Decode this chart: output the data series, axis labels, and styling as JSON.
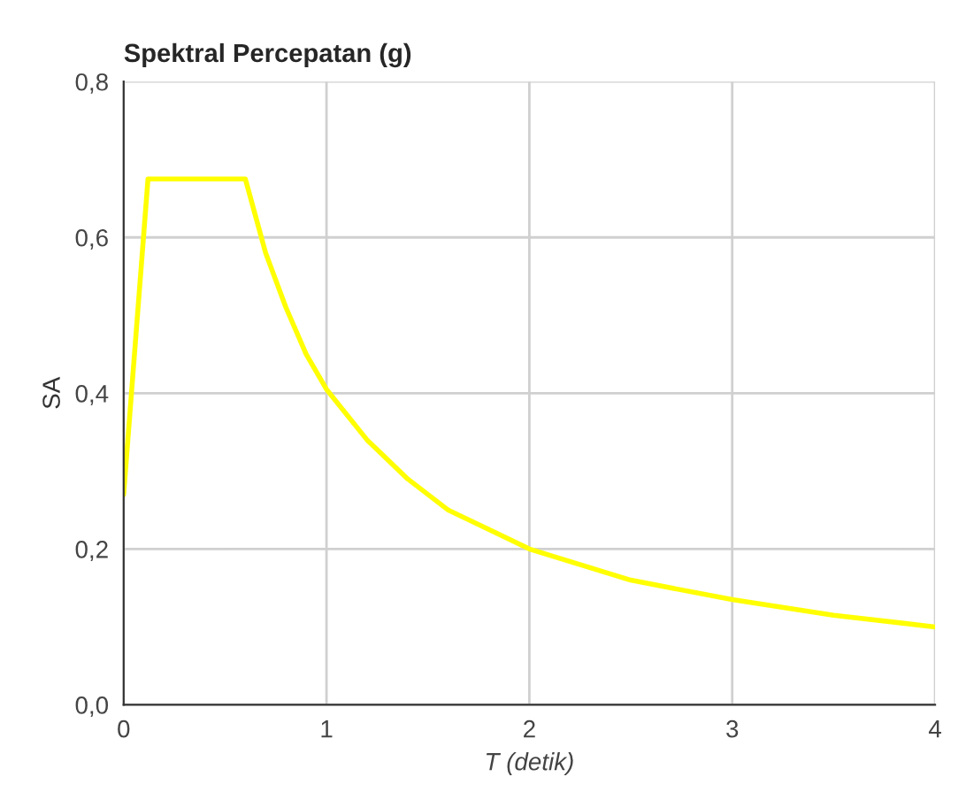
{
  "chart_data": {
    "type": "line",
    "title": "Spektral Percepatan (g)",
    "xlabel": "T (detik)",
    "ylabel": "SA",
    "x": [
      0,
      0.12,
      0.6,
      0.7,
      0.8,
      0.9,
      1.0,
      1.2,
      1.4,
      1.6,
      1.8,
      2.0,
      2.5,
      3.0,
      3.5,
      4.0
    ],
    "series": [
      {
        "color": "#ffff00",
        "values": [
          0.27,
          0.675,
          0.675,
          0.58,
          0.51,
          0.45,
          0.405,
          0.34,
          0.29,
          0.25,
          0.225,
          0.2,
          0.16,
          0.135,
          0.115,
          0.1
        ]
      }
    ],
    "xlim": [
      0,
      4
    ],
    "ylim": [
      0,
      0.8
    ],
    "xticks": [
      0,
      1,
      2,
      3,
      4
    ],
    "yticks": [
      {
        "value": 0,
        "label": "0,0"
      },
      {
        "value": 0.2,
        "label": "0,2"
      },
      {
        "value": 0.4,
        "label": "0,4"
      },
      {
        "value": 0.6,
        "label": "0,6"
      },
      {
        "value": 0.8,
        "label": "0,8"
      }
    ],
    "grid": true,
    "legend": false,
    "marker": "none",
    "line_style": "solid"
  }
}
